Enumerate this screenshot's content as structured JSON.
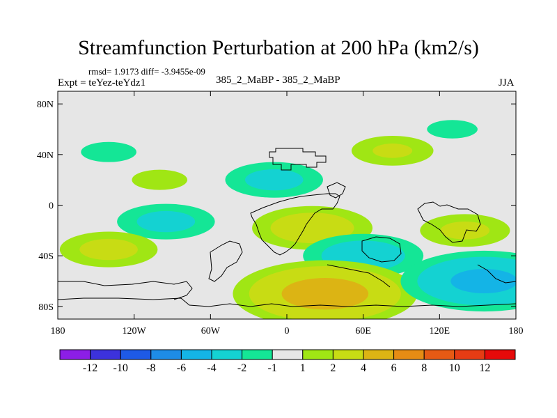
{
  "chart_data": {
    "type": "heatmap",
    "title": "Streamfunction Perturbation at 200 hPa (km2/s)",
    "rmsd_label": "rmsd= 1.9173 diff= -3.9455e-09",
    "experiment_label": "Expt = teYez-teYdz1",
    "subtitle": "385_2_MaBP - 385_2_MaBP",
    "season": "JJA",
    "xlabel": "",
    "ylabel": "",
    "xlim": [
      -180,
      180
    ],
    "ylim": [
      -90,
      90
    ],
    "x_ticks": [
      {
        "value": -180,
        "label": "180"
      },
      {
        "value": -120,
        "label": "120W"
      },
      {
        "value": -60,
        "label": "60W"
      },
      {
        "value": 0,
        "label": "0"
      },
      {
        "value": 60,
        "label": "60E"
      },
      {
        "value": 120,
        "label": "120E"
      },
      {
        "value": 180,
        "label": "180"
      }
    ],
    "y_ticks": [
      {
        "value": 80,
        "label": "80N"
      },
      {
        "value": 40,
        "label": "40N"
      },
      {
        "value": 0,
        "label": "0"
      },
      {
        "value": -40,
        "label": "40S"
      },
      {
        "value": -80,
        "label": "80S"
      }
    ],
    "colorbar": {
      "levels": [
        -12,
        -10,
        -8,
        -6,
        -4,
        -2,
        -1,
        1,
        2,
        4,
        6,
        8,
        10,
        12
      ],
      "labels": [
        "-12",
        "-10",
        "-8",
        "-6",
        "-4",
        "-2",
        "-1",
        "1",
        "2",
        "4",
        "6",
        "8",
        "10",
        "12"
      ],
      "colors": [
        "#8c1ee6",
        "#3c32dc",
        "#1e5ae6",
        "#1e8ce6",
        "#14b4e6",
        "#14d2d2",
        "#14e696",
        "#e6e6e6",
        "#a0e614",
        "#c8dc14",
        "#dcb414",
        "#e68c14",
        "#e65a14",
        "#e63c14",
        "#e60a0a"
      ]
    },
    "anomaly_features": [
      {
        "lon": -140,
        "lat": 42,
        "value": -1.6
      },
      {
        "lon": -100,
        "lat": 20,
        "value": 1.6
      },
      {
        "lon": -10,
        "lat": 20,
        "value": -2.6
      },
      {
        "lon": 83,
        "lat": 43,
        "value": 2.2
      },
      {
        "lon": 130,
        "lat": 60,
        "value": -1.5
      },
      {
        "lon": -95,
        "lat": -13,
        "value": -2.6
      },
      {
        "lon": 20,
        "lat": -18,
        "value": 3.2
      },
      {
        "lon": 140,
        "lat": -20,
        "value": 2.4
      },
      {
        "lon": -140,
        "lat": -35,
        "value": 2.6
      },
      {
        "lon": 60,
        "lat": -40,
        "value": -3.2
      },
      {
        "lon": 30,
        "lat": -70,
        "value": 5.0
      },
      {
        "lon": 155,
        "lat": -60,
        "value": -4.5
      }
    ]
  },
  "colors": {
    "background": "#ffffff",
    "plot_background": "#e6e6e6",
    "coastline": "#000000"
  }
}
